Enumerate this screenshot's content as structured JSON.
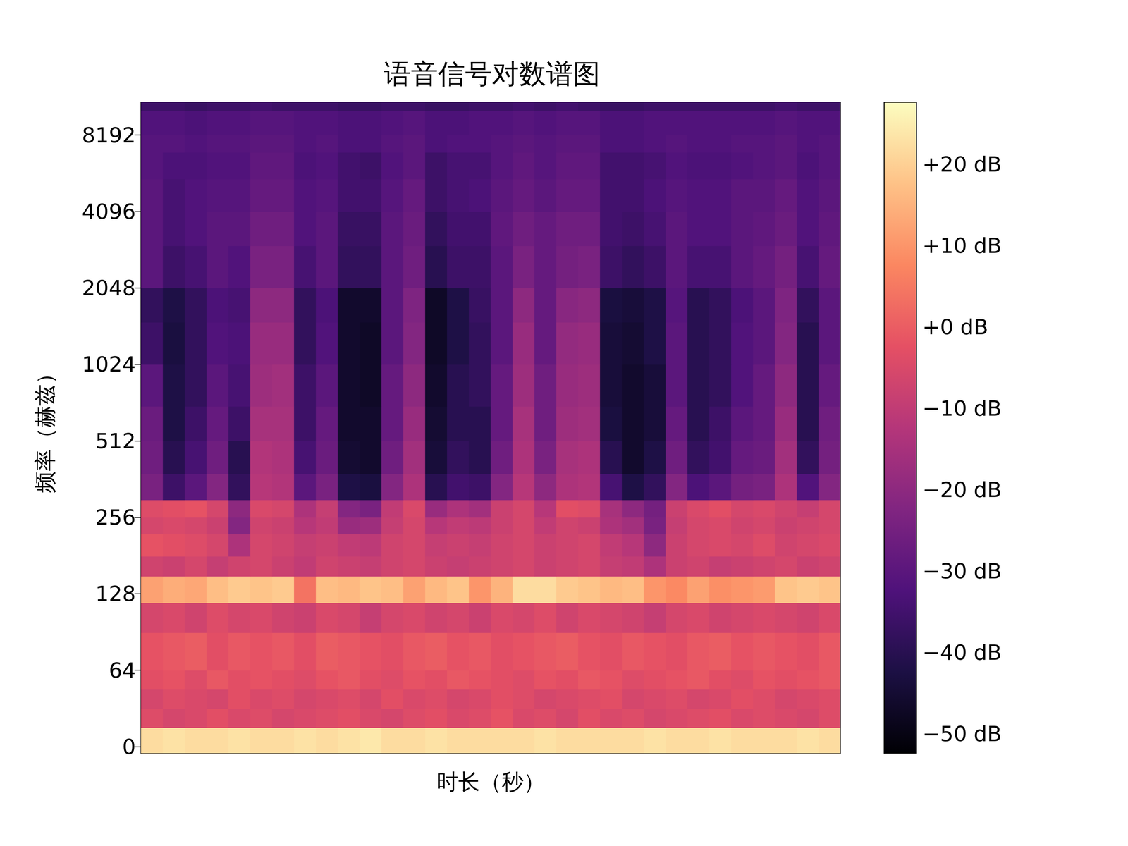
{
  "chart_data": {
    "type": "heatmap",
    "title": "语音信号对数谱图",
    "x_label": "时长（秒）",
    "y_label": "频率（赫兹）",
    "log": "y",
    "tick_labels": "y",
    "color": "magma",
    "xlim": [
      0,
      32
    ],
    "ylim": [
      -5.4,
      11025
    ],
    "yticks": [
      0,
      64,
      128,
      256,
      512,
      1024,
      2048,
      4096,
      8192
    ],
    "time_bins": [
      0,
      1,
      2,
      3,
      4,
      5,
      6,
      7,
      8,
      9,
      10,
      11,
      12,
      13,
      14,
      15,
      16,
      17,
      18,
      19,
      20,
      21,
      22,
      23,
      24,
      25,
      26,
      27,
      28,
      29,
      30,
      31,
      32
    ],
    "freq_bins": [
      -5.4,
      16,
      32,
      48,
      64,
      90,
      118,
      150,
      180,
      220,
      256,
      300,
      380,
      512,
      700,
      1024,
      1500,
      2048,
      3000,
      4096,
      5500,
      7000,
      8192,
      10200,
      11025
    ],
    "cells": [
      [
        22,
        23,
        22,
        22,
        23,
        22,
        22,
        23,
        22,
        23,
        24,
        22,
        22,
        23,
        22,
        22,
        22,
        22,
        23,
        22,
        22,
        22,
        22,
        23,
        22,
        22,
        23,
        22,
        22,
        22,
        23,
        22
      ],
      [
        -4,
        -6,
        -5,
        -3,
        -5,
        -4,
        -6,
        -5,
        -4,
        -3,
        -5,
        -6,
        -4,
        -3,
        -5,
        -4,
        -2,
        -5,
        -4,
        -6,
        -3,
        -5,
        -4,
        -6,
        -5,
        -4,
        -3,
        -5,
        -4,
        -5,
        -6,
        -4
      ],
      [
        -6,
        -4,
        -5,
        -6,
        -3,
        -5,
        -4,
        -6,
        -5,
        -4,
        -6,
        -3,
        -5,
        -4,
        -6,
        -5,
        -3,
        -4,
        -6,
        -5,
        -4,
        -3,
        -6,
        -5,
        -4,
        -6,
        -5,
        -3,
        -4,
        -6,
        -5,
        -4
      ],
      [
        -3,
        -2,
        -4,
        -1,
        -3,
        -2,
        -3,
        -4,
        -2,
        -1,
        -3,
        -4,
        -2,
        -3,
        -1,
        -2,
        -3,
        -4,
        -2,
        -3,
        -1,
        -2,
        -4,
        -3,
        -2,
        -1,
        -3,
        -4,
        -2,
        -3,
        -2,
        -1
      ],
      [
        -2,
        -1,
        0,
        -3,
        -1,
        -2,
        -1,
        -3,
        0,
        -1,
        -2,
        -3,
        -1,
        0,
        -2,
        -1,
        -3,
        -2,
        -1,
        0,
        -2,
        -3,
        -1,
        -2,
        -3,
        -1,
        0,
        -2,
        -1,
        -2,
        -3,
        -1
      ],
      [
        -6,
        -5,
        -7,
        -4,
        -6,
        -5,
        -7,
        -8,
        -5,
        -6,
        -9,
        -6,
        -5,
        -7,
        -6,
        -8,
        -5,
        -6,
        -4,
        -7,
        -5,
        -6,
        -7,
        -9,
        -6,
        -5,
        -7,
        -6,
        -5,
        -6,
        -7,
        -5
      ],
      [
        12,
        14,
        13,
        17,
        19,
        18,
        19,
        4,
        17,
        16,
        18,
        17,
        12,
        16,
        18,
        10,
        15,
        22,
        22,
        19,
        18,
        16,
        17,
        10,
        8,
        12,
        9,
        10,
        11,
        18,
        19,
        18
      ],
      [
        -7,
        -8,
        -6,
        -9,
        -7,
        -6,
        -8,
        -10,
        -7,
        -8,
        -9,
        -7,
        -6,
        -8,
        -9,
        -8,
        -7,
        -6,
        -8,
        -7,
        -6,
        -9,
        -10,
        -14,
        -8,
        -7,
        -9,
        -8,
        -7,
        -6,
        -8,
        -7
      ],
      [
        -2,
        -3,
        -4,
        -6,
        -14,
        -6,
        -7,
        -9,
        -8,
        -10,
        -11,
        -7,
        -6,
        -9,
        -8,
        -9,
        -7,
        -6,
        -8,
        -7,
        -6,
        -10,
        -12,
        -20,
        -8,
        -6,
        -5,
        -6,
        -4,
        -7,
        -6,
        -5
      ],
      [
        -6,
        -5,
        -6,
        -8,
        -22,
        -7,
        -8,
        -12,
        -10,
        -18,
        -17,
        -9,
        -6,
        -12,
        -10,
        -11,
        -8,
        -6,
        -10,
        -7,
        -8,
        -14,
        -16,
        -24,
        -9,
        -6,
        -5,
        -7,
        -6,
        -8,
        -7,
        -6
      ],
      [
        -4,
        -3,
        -2,
        -6,
        -20,
        -5,
        -6,
        -14,
        -9,
        -22,
        -24,
        -10,
        -5,
        -18,
        -14,
        -16,
        -8,
        -6,
        -12,
        -3,
        -4,
        -15,
        -20,
        -25,
        -8,
        -5,
        -3,
        -6,
        -5,
        -7,
        -9,
        -6
      ],
      [
        -24,
        -36,
        -30,
        -22,
        -38,
        -12,
        -13,
        -30,
        -24,
        -42,
        -43,
        -22,
        -14,
        -40,
        -35,
        -36,
        -22,
        -12,
        -20,
        -14,
        -13,
        -34,
        -42,
        -38,
        -22,
        -33,
        -30,
        -25,
        -24,
        -14,
        -32,
        -22
      ],
      [
        -26,
        -40,
        -34,
        -26,
        -40,
        -13,
        -14,
        -34,
        -27,
        -45,
        -46,
        -26,
        -16,
        -44,
        -38,
        -40,
        -26,
        -14,
        -24,
        -15,
        -14,
        -40,
        -46,
        -42,
        -26,
        -38,
        -35,
        -28,
        -27,
        -16,
        -38,
        -25
      ],
      [
        -27,
        -42,
        -36,
        -28,
        -36,
        -15,
        -15,
        -36,
        -28,
        -46,
        -46,
        -28,
        -18,
        -45,
        -40,
        -40,
        -28,
        -15,
        -26,
        -17,
        -16,
        -43,
        -46,
        -44,
        -28,
        -40,
        -36,
        -30,
        -28,
        -18,
        -40,
        -26
      ],
      [
        -30,
        -42,
        -38,
        -30,
        -34,
        -17,
        -16,
        -36,
        -30,
        -46,
        -47,
        -28,
        -20,
        -46,
        -40,
        -38,
        -28,
        -17,
        -26,
        -18,
        -17,
        -44,
        -46,
        -44,
        -30,
        -40,
        -38,
        -32,
        -28,
        -20,
        -40,
        -28
      ],
      [
        -36,
        -43,
        -38,
        -32,
        -33,
        -18,
        -18,
        -38,
        -32,
        -46,
        -47,
        -30,
        -22,
        -47,
        -42,
        -38,
        -30,
        -18,
        -28,
        -19,
        -18,
        -44,
        -45,
        -42,
        -30,
        -40,
        -38,
        -32,
        -30,
        -22,
        -40,
        -30
      ],
      [
        -38,
        -42,
        -38,
        -33,
        -34,
        -20,
        -20,
        -38,
        -33,
        -46,
        -46,
        -30,
        -23,
        -47,
        -42,
        -37,
        -30,
        -20,
        -28,
        -21,
        -20,
        -43,
        -44,
        -42,
        -31,
        -40,
        -38,
        -33,
        -30,
        -23,
        -38,
        -30
      ],
      [
        -30,
        -36,
        -34,
        -30,
        -32,
        -24,
        -24,
        -34,
        -30,
        -38,
        -38,
        -30,
        -26,
        -40,
        -36,
        -36,
        -30,
        -24,
        -28,
        -25,
        -24,
        -36,
        -38,
        -36,
        -30,
        -34,
        -34,
        -30,
        -28,
        -25,
        -34,
        -28
      ],
      [
        -30,
        -34,
        -32,
        -30,
        -30,
        -26,
        -26,
        -32,
        -30,
        -37,
        -37,
        -30,
        -27,
        -38,
        -35,
        -35,
        -29,
        -26,
        -28,
        -26,
        -26,
        -35,
        -36,
        -34,
        -30,
        -32,
        -32,
        -30,
        -29,
        -27,
        -32,
        -29
      ],
      [
        -30,
        -34,
        -32,
        -31,
        -31,
        -28,
        -28,
        -32,
        -31,
        -35,
        -35,
        -31,
        -28,
        -36,
        -34,
        -33,
        -30,
        -28,
        -30,
        -28,
        -28,
        -35,
        -35,
        -33,
        -31,
        -32,
        -32,
        -30,
        -30,
        -28,
        -32,
        -30
      ],
      [
        -31,
        -33,
        -33,
        -32,
        -32,
        -29,
        -29,
        -33,
        -32,
        -35,
        -36,
        -32,
        -30,
        -36,
        -34,
        -34,
        -31,
        -29,
        -31,
        -29,
        -29,
        -35,
        -35,
        -34,
        -32,
        -33,
        -33,
        -32,
        -31,
        -30,
        -33,
        -31
      ],
      [
        -31,
        -31,
        -32,
        -31,
        -31,
        -30,
        -30,
        -32,
        -31,
        -33,
        -33,
        -31,
        -30,
        -33,
        -32,
        -32,
        -31,
        -30,
        -31,
        -30,
        -30,
        -33,
        -33,
        -32,
        -31,
        -32,
        -32,
        -31,
        -31,
        -30,
        -32,
        -31
      ],
      [
        -32,
        -32,
        -33,
        -32,
        -32,
        -31,
        -31,
        -32,
        -32,
        -33,
        -33,
        -32,
        -31,
        -33,
        -33,
        -32,
        -32,
        -31,
        -32,
        -31,
        -31,
        -33,
        -33,
        -32,
        -32,
        -32,
        -32,
        -32,
        -32,
        -31,
        -32,
        -32
      ],
      [
        -36,
        -36,
        -37,
        -36,
        -36,
        -35,
        -36,
        -36,
        -36,
        -37,
        -37,
        -36,
        -36,
        -37,
        -37,
        -36,
        -36,
        -35,
        -36,
        -35,
        -36,
        -37,
        -37,
        -36,
        -36,
        -36,
        -36,
        -36,
        -36,
        -35,
        -36,
        -36
      ]
    ],
    "colorbar": {
      "range": [
        -52.4,
        27.6
      ],
      "ticks": [
        {
          "value": 20,
          "label": "+20 dB"
        },
        {
          "value": 10,
          "label": "+10 dB"
        },
        {
          "value": 0,
          "label": "+0 dB"
        },
        {
          "value": -10,
          "label": "−10 dB"
        },
        {
          "value": -20,
          "label": "−20 dB"
        },
        {
          "value": -30,
          "label": "−30 dB"
        },
        {
          "value": -40,
          "label": "−40 dB"
        },
        {
          "value": -50,
          "label": "−50 dB"
        }
      ]
    }
  }
}
